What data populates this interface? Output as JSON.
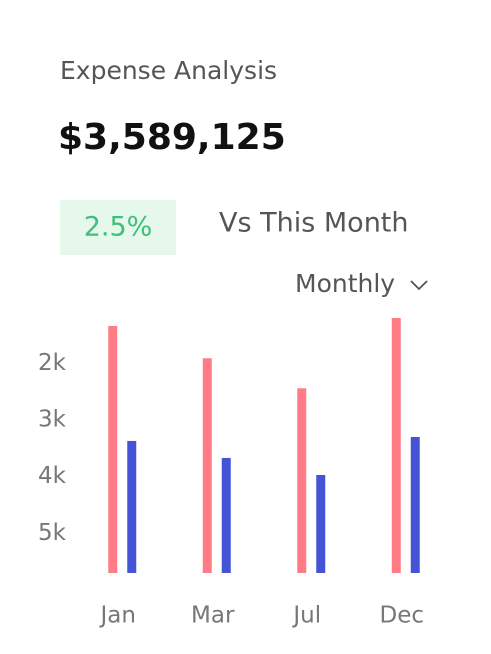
{
  "header": {
    "title": "Expense Analysis",
    "amount": "$3,589,125",
    "change": "2.5%",
    "comparison": "Vs This Month",
    "period": "Monthly"
  },
  "chart_data": {
    "type": "bar",
    "categories": [
      "Jan",
      "Mar",
      "Jul",
      "Dec"
    ],
    "series": [
      {
        "color": "#ff7b86",
        "values": [
          1340,
          1910,
          2440,
          1200
        ]
      },
      {
        "color": "#4553d6",
        "values": [
          3370,
          3670,
          3970,
          3300
        ]
      }
    ],
    "ylim": [
      5700,
      1200
    ],
    "yticks": [
      {
        "value": 2000,
        "label": "2k"
      },
      {
        "value": 3000,
        "label": "3k"
      },
      {
        "value": 4000,
        "label": "4k"
      },
      {
        "value": 5000,
        "label": "5k"
      }
    ],
    "grid": false
  }
}
